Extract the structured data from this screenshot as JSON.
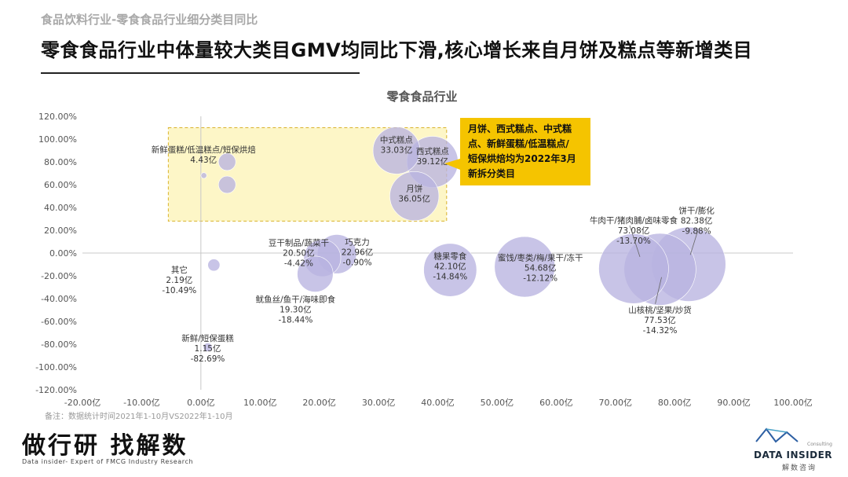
{
  "header": {
    "subtitle": "食品饮料行业-零食食品行业细分类目同比",
    "headline": "零食食品行业中体量较大类目GMV均同比下滑,核心增长来自月饼及糕点等新增类目"
  },
  "chart_data": {
    "type": "scatter",
    "title": "零食食品行业",
    "xlabel": "",
    "ylabel": "",
    "xlim": [
      -20,
      100
    ],
    "ylim": [
      -120,
      120
    ],
    "x_ticks": [
      "-20.00亿",
      "-10.00亿",
      "0.00亿",
      "10.00亿",
      "20.00亿",
      "30.00亿",
      "40.00亿",
      "50.00亿",
      "60.00亿",
      "70.00亿",
      "80.00亿",
      "90.00亿",
      "100.00亿"
    ],
    "y_ticks": [
      "120.00%",
      "100.00%",
      "80.00%",
      "60.00%",
      "40.00%",
      "20.00%",
      "0.00%",
      "-20.00%",
      "-40.00%",
      "-60.00%",
      "-80.00%",
      "-100.00%",
      "-120.00%"
    ],
    "grid": false,
    "points": [
      {
        "label": [
          "中式糕点",
          "33.03亿"
        ],
        "x": 33.03,
        "y": 90,
        "size": 33.03
      },
      {
        "label": [
          "西式糕点",
          "39.12亿"
        ],
        "x": 39.12,
        "y": 80,
        "size": 39.12
      },
      {
        "label": [
          "月饼",
          "36.05亿"
        ],
        "x": 36.05,
        "y": 50,
        "size": 36.05
      },
      {
        "label": [
          "新鲜蛋糕/低温糕点/短保烘焙",
          "4.43亿"
        ],
        "x": 4.43,
        "y": 80,
        "size": 4.43
      },
      {
        "label": [],
        "x": 4.43,
        "y": 60,
        "size": 4.43
      },
      {
        "label": [],
        "x": 0.5,
        "y": 68,
        "size": 0.5
      },
      {
        "label": [
          "豆干制品/蔬菜干",
          "20.50亿",
          "-4.42%"
        ],
        "x": 20.5,
        "y": -4.42,
        "size": 20.5
      },
      {
        "label": [
          "巧克力",
          "22.96亿",
          "-0.90%"
        ],
        "x": 22.96,
        "y": -0.9,
        "size": 22.96
      },
      {
        "label": [
          "鱿鱼丝/鱼干/海味即食",
          "19.30亿",
          "-18.44%"
        ],
        "x": 19.3,
        "y": -18.44,
        "size": 19.3
      },
      {
        "label": [
          "其它",
          "2.19亿",
          "-10.49%"
        ],
        "x": 2.19,
        "y": -10.49,
        "size": 2.19
      },
      {
        "label": [
          "新鲜/短保蛋糕",
          "1.15亿",
          "-82.69%"
        ],
        "x": 1.15,
        "y": -82.69,
        "size": 1.15
      },
      {
        "label": [
          "糖果零食",
          "42.10亿",
          "-14.84%"
        ],
        "x": 42.1,
        "y": -14.84,
        "size": 42.1
      },
      {
        "label": [
          "蜜饯/枣类/梅/果干/冻干",
          "54.68亿",
          "-12.12%"
        ],
        "x": 54.68,
        "y": -12.12,
        "size": 54.68
      },
      {
        "label": [
          "牛肉干/猪肉脯/卤味零食",
          "73.08亿",
          "-13.70%"
        ],
        "x": 73.08,
        "y": -13.7,
        "size": 73.08
      },
      {
        "label": [
          "山核桃/坚果/炒货",
          "77.53亿",
          "-14.32%"
        ],
        "x": 77.53,
        "y": -14.32,
        "size": 77.53
      },
      {
        "label": [
          "饼干/膨化",
          "82.38亿",
          "-9.88%"
        ],
        "x": 82.38,
        "y": -9.88,
        "size": 82.38
      }
    ],
    "annotation": [
      "月饼、西式糕点、中式糕",
      "点、新鲜蛋糕/低温糕点/",
      "短保烘焙均为2022年3月",
      "新拆分类目"
    ],
    "footnote": "备注：数据统计时间2021年1-10月VS2022年1-10月",
    "bubble_color": "#b9b3e0",
    "highlight_fill": "#fdf6c7",
    "highlight_border": "#d9b22b",
    "callout_fill": "#f5c400"
  },
  "brand": {
    "slogan": "做行研 找解数",
    "tagline": "Data insider- Expert of FMCG Industry Research",
    "logo_consulting": "Consulting",
    "logo_name": "DATA INSIDER",
    "logo_cn": "解数咨询"
  }
}
